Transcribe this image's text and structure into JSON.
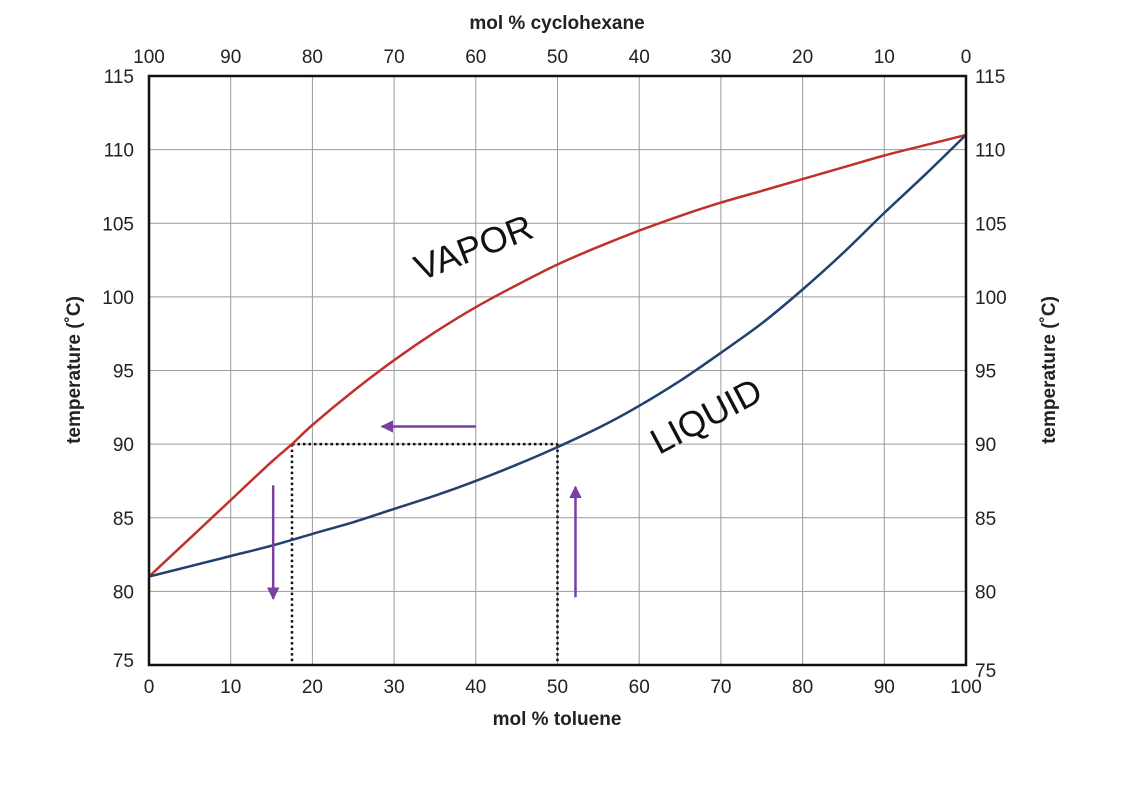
{
  "chart_data": {
    "type": "line",
    "xlabel": "mol % toluene",
    "x2label": "mol % cyclohexane",
    "ylabel_left": "temperature (˚C)",
    "ylabel_right": "temperature (˚C)",
    "xlim": [
      0,
      100
    ],
    "ylim": [
      75,
      115
    ],
    "x_ticks": [
      0,
      10,
      20,
      30,
      40,
      50,
      60,
      70,
      80,
      90,
      100
    ],
    "x2_ticks": [
      100,
      90,
      80,
      70,
      60,
      50,
      40,
      30,
      20,
      10,
      0
    ],
    "y_ticks": [
      75,
      80,
      85,
      90,
      95,
      100,
      105,
      110,
      115
    ],
    "grid": true,
    "series": [
      {
        "name": "VAPOR",
        "color": "#c0312b",
        "x": [
          0,
          5,
          10,
          15,
          17.5,
          20,
          25,
          30,
          35,
          40,
          45,
          50,
          55,
          60,
          65,
          70,
          75,
          80,
          85,
          90,
          95,
          100
        ],
        "y": [
          81,
          83.6,
          86.2,
          88.8,
          90,
          91.3,
          93.6,
          95.7,
          97.6,
          99.3,
          100.8,
          102.2,
          103.4,
          104.5,
          105.5,
          106.4,
          107.2,
          108,
          108.8,
          109.6,
          110.3,
          111
        ]
      },
      {
        "name": "LIQUID",
        "color": "#22416e",
        "x": [
          0,
          5,
          10,
          15,
          20,
          25,
          30,
          35,
          40,
          45,
          50,
          55,
          60,
          65,
          70,
          75,
          80,
          85,
          90,
          95,
          100
        ],
        "y": [
          81,
          81.7,
          82.4,
          83.1,
          83.9,
          84.7,
          85.6,
          86.5,
          87.5,
          88.6,
          89.8,
          91.1,
          92.6,
          94.3,
          96.2,
          98.2,
          100.5,
          103,
          105.7,
          108.3,
          111
        ]
      }
    ],
    "annotations": {
      "tie_line": {
        "x": [
          17.5,
          50
        ],
        "y": 90
      },
      "arrows": [
        {
          "direction": "left",
          "color": "#7b3fa0",
          "from": [
            40,
            91.2
          ],
          "to": [
            28.5,
            91.2
          ]
        },
        {
          "direction": "down",
          "color": "#7b3fa0",
          "from": [
            15.2,
            87.2
          ],
          "to": [
            15.2,
            79.5
          ]
        },
        {
          "direction": "up",
          "color": "#7b3fa0",
          "from": [
            52.2,
            79.6
          ],
          "to": [
            52.2,
            87.1
          ]
        }
      ]
    }
  }
}
